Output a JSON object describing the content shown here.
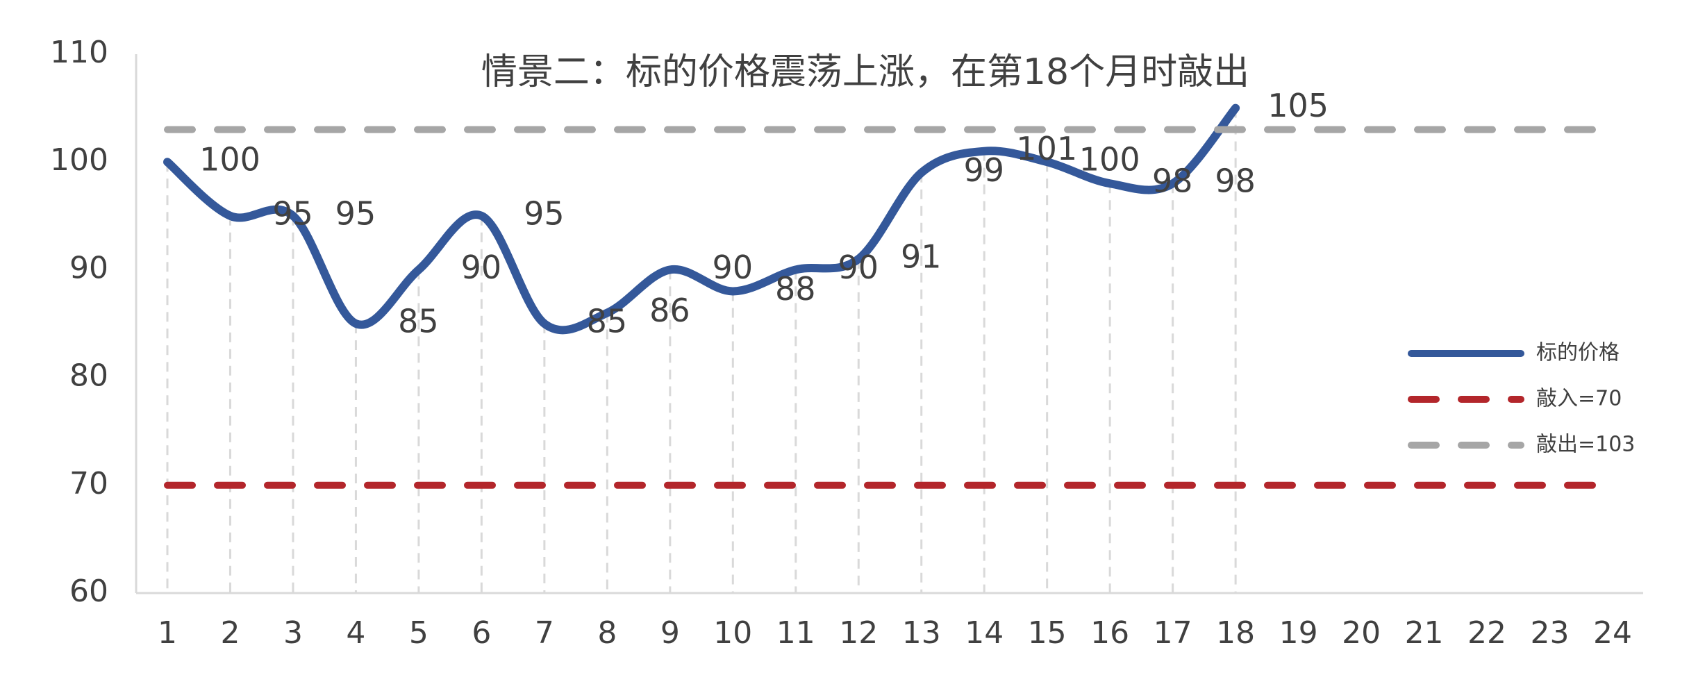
{
  "chart_data": {
    "type": "line",
    "title": "情景二：标的价格震荡上涨，在第18个月时敲出",
    "categories": [
      "1",
      "2",
      "3",
      "4",
      "5",
      "6",
      "7",
      "8",
      "9",
      "10",
      "11",
      "12",
      "13",
      "14",
      "15",
      "16",
      "17",
      "18",
      "19",
      "20",
      "21",
      "22",
      "23",
      "24"
    ],
    "series": [
      {
        "name": "标的价格",
        "color": "#34589a",
        "style": "solid",
        "labels": true,
        "values": [
          100,
          95,
          95,
          85,
          90,
          95,
          85,
          86,
          90,
          88,
          90,
          91,
          99,
          101,
          100,
          98,
          98,
          105,
          null,
          null,
          null,
          null,
          null,
          null
        ]
      },
      {
        "name": "敲入=70",
        "color": "#b3262b",
        "style": "dashed",
        "labels": false,
        "values": [
          70,
          70,
          70,
          70,
          70,
          70,
          70,
          70,
          70,
          70,
          70,
          70,
          70,
          70,
          70,
          70,
          70,
          70,
          70,
          70,
          70,
          70,
          70,
          70
        ]
      },
      {
        "name": "敲出=103",
        "color": "#a6a6a6",
        "style": "dashed",
        "labels": false,
        "values": [
          103,
          103,
          103,
          103,
          103,
          103,
          103,
          103,
          103,
          103,
          103,
          103,
          103,
          103,
          103,
          103,
          103,
          103,
          103,
          103,
          103,
          103,
          103,
          103
        ]
      }
    ],
    "ylim": [
      60,
      110
    ],
    "yticks": [
      60,
      70,
      80,
      90,
      100,
      110
    ],
    "drop_lines": true,
    "legend": "right"
  }
}
